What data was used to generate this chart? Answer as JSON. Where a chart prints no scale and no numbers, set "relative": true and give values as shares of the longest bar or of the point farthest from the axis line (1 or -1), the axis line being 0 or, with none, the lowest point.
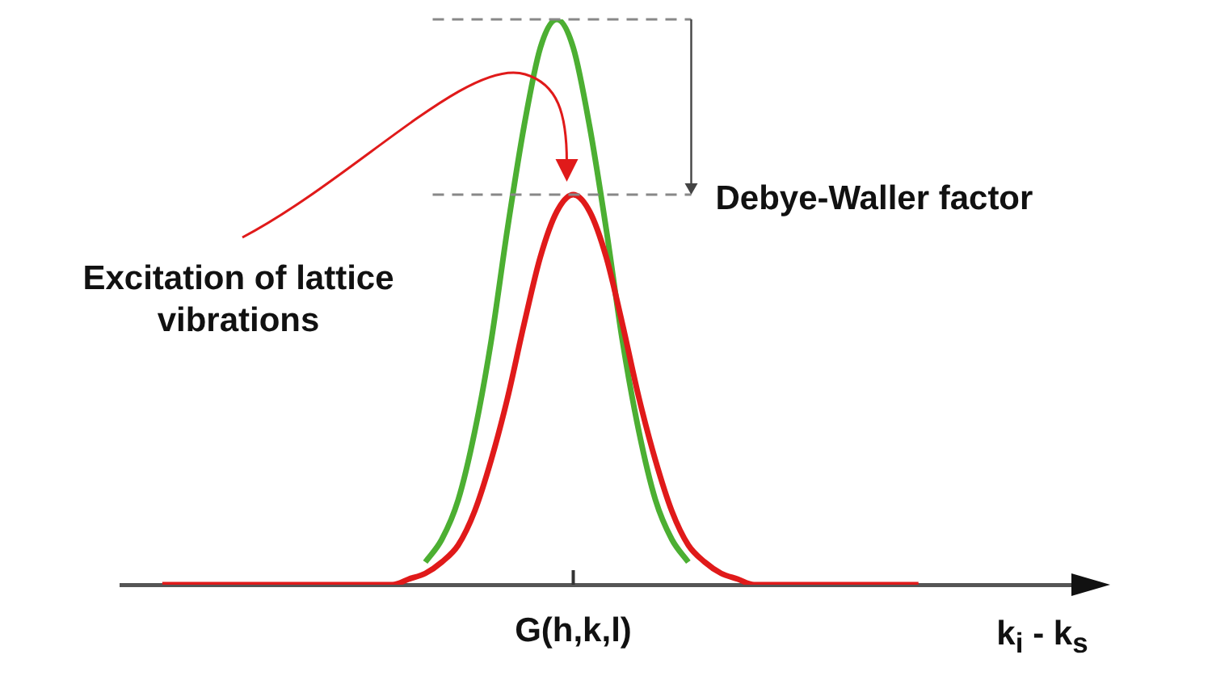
{
  "chart_data": {
    "type": "line",
    "relative": true,
    "xlabel": "k$_{i}$ - k$_{s}$",
    "categories": [
      null,
      null,
      null,
      null,
      null,
      null,
      null,
      null,
      null,
      null,
      null,
      null,
      null,
      null,
      null,
      null,
      null,
      null,
      null,
      null,
      null,
      null,
      null,
      null,
      null,
      null,
      null,
      null,
      null,
      null,
      null,
      null,
      null,
      null,
      null,
      null,
      null,
      null,
      null,
      null,
      null,
      null,
      null,
      null,
      null,
      null,
      null
    ],
    "series": [
      {
        "color": "#4caf32",
        "values": [
          null,
          null,
          null,
          null,
          null,
          null,
          null,
          null,
          null,
          null,
          null,
          null,
          null,
          null,
          null,
          null,
          0.04,
          0.08,
          0.15,
          0.27,
          0.43,
          0.63,
          0.81,
          0.95,
          1,
          0.95,
          0.81,
          0.63,
          0.43,
          0.27,
          0.15,
          0.08,
          0.04,
          null,
          null,
          null,
          null,
          null,
          null,
          null,
          null,
          null,
          null,
          null,
          null,
          null,
          null
        ]
      },
      {
        "color": "#e01a1a",
        "values": [
          0,
          0,
          0,
          0,
          0,
          0,
          0,
          0,
          0,
          0,
          0,
          0,
          0,
          0,
          0,
          0.01,
          0.02,
          0.04,
          0.07,
          0.13,
          0.22,
          0.33,
          0.46,
          0.58,
          0.66,
          0.69,
          0.66,
          0.58,
          0.46,
          0.33,
          0.22,
          0.13,
          0.07,
          0.04,
          0.02,
          0.01,
          0,
          0,
          0,
          0,
          0,
          0,
          0,
          0,
          0,
          0,
          0
        ]
      }
    ],
    "ref_lines": [
      {
        "axis": "y",
        "value": 1,
        "label": null,
        "color": "#888888",
        "line_style": "dashed"
      },
      {
        "axis": "y",
        "value": 0.69,
        "label": "Debye-Waller factor",
        "color": "#888888",
        "line_style": "dashed"
      }
    ],
    "annotations": [
      "Excitation of lattice vibrations",
      "G(h,k,l)"
    ],
    "legend": false
  }
}
